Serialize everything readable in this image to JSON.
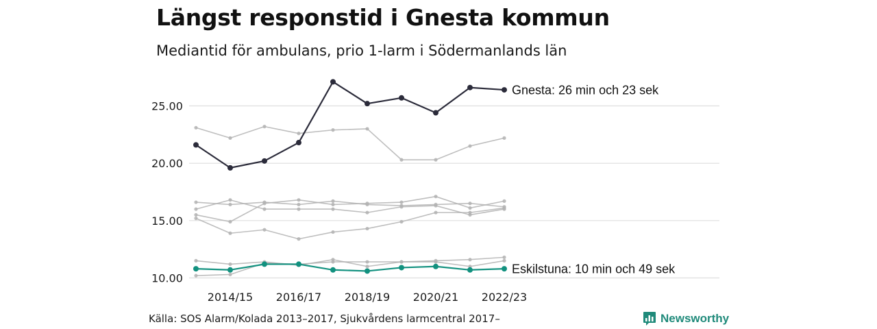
{
  "header": {
    "title": "Längst responstid i Gnesta kommun",
    "subtitle": "Mediantid för ambulans, prio 1-larm i Södermanlands län"
  },
  "footer": {
    "source": "Källa: SOS Alarm/Kolada 2013–2017, Sjukvårdens larmcentral 2017–",
    "brand": "Newsworthy"
  },
  "colors": {
    "highlight_dark": "#2b2b3a",
    "highlight_teal": "#12917f",
    "other_series": "#b3b3b3",
    "grid": "#dddddd",
    "brand": "#1f8a7a"
  },
  "icons": {
    "brand_logo": "bar-chart-speech-bubble-icon"
  },
  "chart_data": {
    "type": "line",
    "categories": [
      "2013/14",
      "2014/15",
      "2015/16",
      "2016/17",
      "2017/18",
      "2018/19",
      "2019/20",
      "2020/21",
      "2021/22",
      "2022/23"
    ],
    "x_tick_labels": [
      "2014/15",
      "2016/17",
      "2018/19",
      "2020/21",
      "2022/23"
    ],
    "y_tick_labels": [
      "10.00",
      "15.00",
      "20.00",
      "25.00"
    ],
    "y_ticks": [
      10,
      15,
      20,
      25
    ],
    "ylim": [
      10,
      28
    ],
    "grid": true,
    "annotations": [
      {
        "series": "Gnesta",
        "text": "Gnesta: 26 min och 23 sek"
      },
      {
        "series": "Eskilstuna",
        "text": "Eskilstuna: 10 min och 49 sek"
      }
    ],
    "series": [
      {
        "name": "Gnesta",
        "highlight": "dark",
        "values": [
          21.6,
          19.6,
          20.2,
          21.8,
          27.1,
          25.2,
          25.7,
          24.4,
          26.6,
          26.4
        ]
      },
      {
        "name": "Eskilstuna",
        "highlight": "teal",
        "values": [
          10.8,
          10.7,
          11.2,
          11.2,
          10.7,
          10.6,
          10.9,
          11.0,
          10.7,
          10.8
        ]
      },
      {
        "values": [
          23.1,
          22.2,
          23.2,
          22.6,
          22.9,
          23.0,
          20.3,
          20.3,
          21.5,
          22.2
        ]
      },
      {
        "values": [
          16.6,
          16.4,
          16.6,
          16.4,
          16.7,
          16.4,
          16.3,
          16.4,
          16.5,
          16.2
        ]
      },
      {
        "values": [
          16.0,
          16.8,
          16.0,
          16.0,
          16.0,
          15.7,
          16.2,
          16.3,
          15.5,
          16.0
        ]
      },
      {
        "values": [
          15.5,
          14.9,
          16.5,
          16.8,
          16.4,
          16.5,
          16.6,
          17.1,
          16.1,
          16.7
        ]
      },
      {
        "values": [
          15.2,
          13.9,
          14.2,
          13.4,
          14.0,
          14.3,
          14.9,
          15.7,
          15.7,
          16.1
        ]
      },
      {
        "values": [
          11.5,
          11.2,
          11.4,
          11.1,
          11.6,
          11.0,
          11.4,
          11.4,
          11.0,
          11.5
        ]
      },
      {
        "values": [
          10.2,
          10.3,
          11.3,
          11.2,
          11.4,
          11.4,
          11.4,
          11.5,
          11.6,
          11.8
        ]
      }
    ]
  }
}
